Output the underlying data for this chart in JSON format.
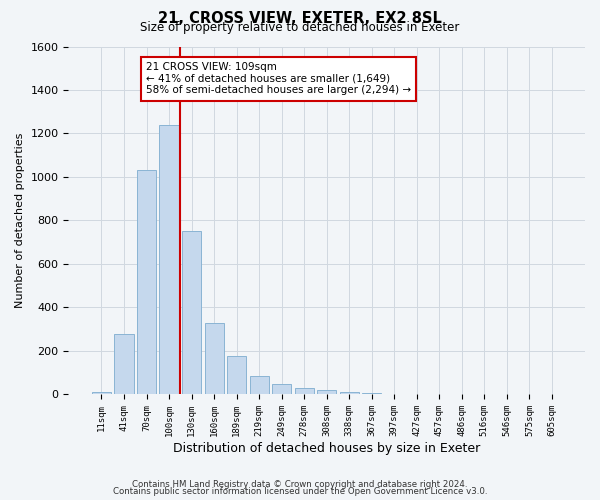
{
  "title": "21, CROSS VIEW, EXETER, EX2 8SL",
  "subtitle": "Size of property relative to detached houses in Exeter",
  "xlabel": "Distribution of detached houses by size in Exeter",
  "ylabel": "Number of detached properties",
  "bar_labels": [
    "11sqm",
    "41sqm",
    "70sqm",
    "100sqm",
    "130sqm",
    "160sqm",
    "189sqm",
    "219sqm",
    "249sqm",
    "278sqm",
    "308sqm",
    "338sqm",
    "367sqm",
    "397sqm",
    "427sqm",
    "457sqm",
    "486sqm",
    "516sqm",
    "546sqm",
    "575sqm",
    "605sqm"
  ],
  "bar_values": [
    10,
    280,
    1030,
    1240,
    750,
    330,
    175,
    85,
    50,
    30,
    20,
    10,
    5,
    2,
    1,
    1,
    0,
    0,
    0,
    1,
    0
  ],
  "bar_color": "#c5d8ed",
  "bar_edge_color": "#8ab4d4",
  "vline_x": 3.5,
  "vline_color": "#cc0000",
  "annotation_title": "21 CROSS VIEW: 109sqm",
  "annotation_line1": "← 41% of detached houses are smaller (1,649)",
  "annotation_line2": "58% of semi-detached houses are larger (2,294) →",
  "annotation_box_color": "#ffffff",
  "annotation_box_edge_color": "#cc0000",
  "ylim": [
    0,
    1600
  ],
  "yticks": [
    0,
    200,
    400,
    600,
    800,
    1000,
    1200,
    1400,
    1600
  ],
  "footer_line1": "Contains HM Land Registry data © Crown copyright and database right 2024.",
  "footer_line2": "Contains public sector information licensed under the Open Government Licence v3.0.",
  "bg_color": "#f2f5f8",
  "plot_bg_color": "#f2f5f8",
  "grid_color": "#d0d8e0"
}
